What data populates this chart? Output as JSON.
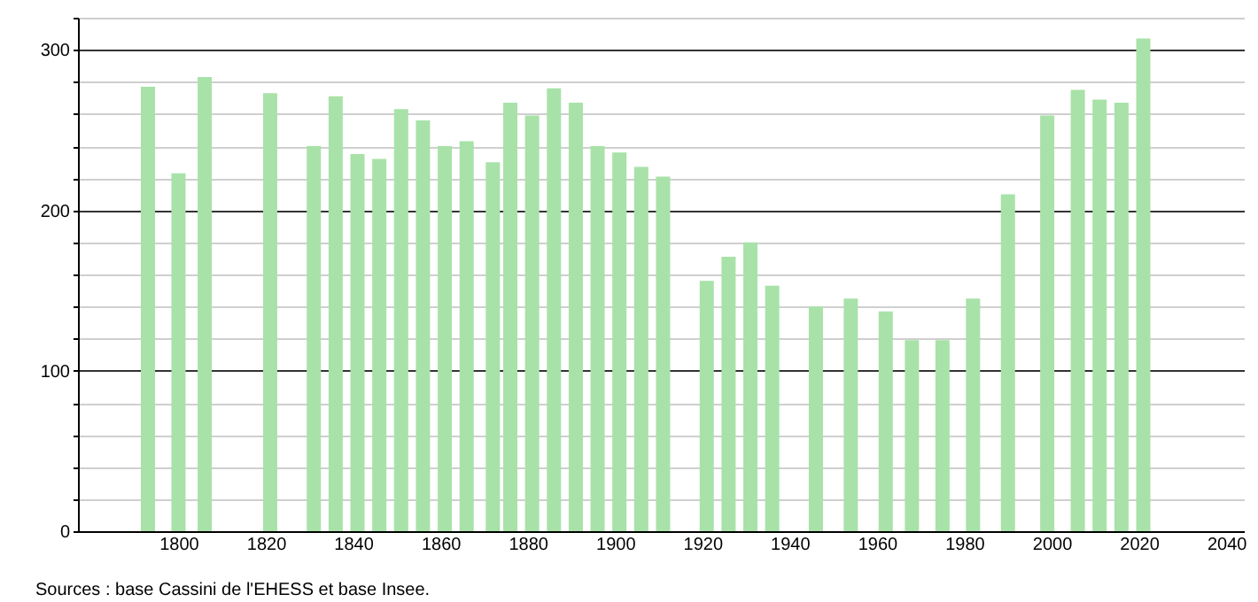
{
  "chart_data": {
    "type": "bar",
    "x": [
      1793,
      1800,
      1806,
      1821,
      1831,
      1836,
      1841,
      1846,
      1851,
      1856,
      1861,
      1866,
      1872,
      1876,
      1881,
      1886,
      1891,
      1896,
      1901,
      1906,
      1911,
      1921,
      1926,
      1931,
      1936,
      1946,
      1954,
      1962,
      1968,
      1975,
      1982,
      1990,
      1999,
      2006,
      2011,
      2016,
      2021
    ],
    "values": [
      277,
      223,
      283,
      273,
      240,
      271,
      235,
      232,
      263,
      256,
      240,
      243,
      230,
      267,
      259,
      276,
      267,
      240,
      236,
      227,
      221,
      156,
      171,
      180,
      153,
      140,
      145,
      137,
      119,
      119,
      145,
      210,
      259,
      275,
      269,
      267,
      307
    ],
    "color": "#a8e2a8",
    "xlim": [
      1779,
      2042
    ],
    "xticks": [
      1800,
      1820,
      1840,
      1860,
      1880,
      1900,
      1920,
      1940,
      1960,
      1980,
      2000,
      2020,
      2040
    ],
    "ylim": [
      0,
      320
    ],
    "yticks": [
      0,
      {
        "value": 20,
        "label": null
      },
      {
        "value": 40,
        "label": null
      },
      {
        "value": 60,
        "label": null
      },
      {
        "value": 80,
        "label": null
      },
      100,
      {
        "value": 120,
        "label": null
      },
      {
        "value": 140,
        "label": null
      },
      {
        "value": 160,
        "label": null
      },
      {
        "value": 180,
        "label": null
      },
      200,
      {
        "value": 220,
        "label": null
      },
      {
        "value": 240,
        "label": null
      },
      {
        "value": 260,
        "label": null
      },
      {
        "value": 280,
        "label": null
      },
      300,
      {
        "value": 320,
        "label": null
      }
    ],
    "grid": "y",
    "annotations": [
      "Sources : base Cassini de l'EHESS et base Insee."
    ]
  }
}
